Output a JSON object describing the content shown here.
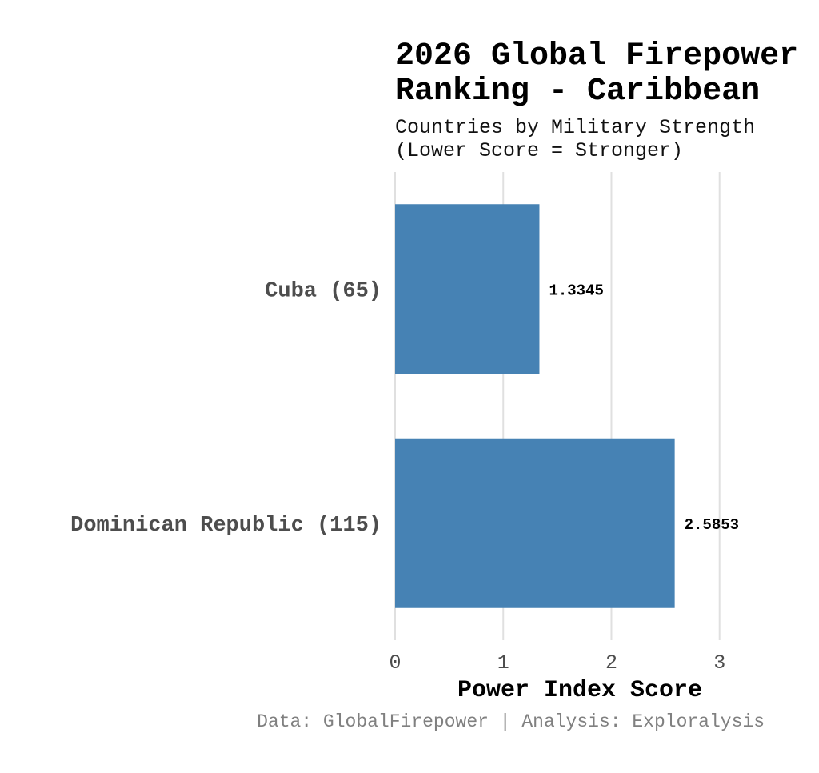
{
  "chart_data": {
    "type": "bar",
    "orientation": "horizontal",
    "title_lines": [
      "2026 Global Firepower",
      "Ranking - Caribbean"
    ],
    "subtitle_lines": [
      "Countries by Military Strength",
      "(Lower Score = Stronger)"
    ],
    "categories": [
      "Cuba (65)",
      "Dominican Republic (115)"
    ],
    "values": [
      1.3345,
      2.5853
    ],
    "value_labels": [
      "1.3345",
      "2.5853"
    ],
    "xlabel": "Power Index Score",
    "ylabel": "",
    "xlim": [
      0,
      3.15
    ],
    "xticks": [
      0,
      1,
      2,
      3
    ],
    "xtick_labels": [
      "0",
      "1",
      "2",
      "3"
    ],
    "grid": "vertical",
    "legend": "none",
    "caption": "Data: GlobalFirepower | Analysis: Exploralysis",
    "colors": {
      "bar": "#4682b4",
      "grid": "#e0e0e0",
      "category_text": "#4d4d4d",
      "caption_text": "#808080"
    }
  }
}
